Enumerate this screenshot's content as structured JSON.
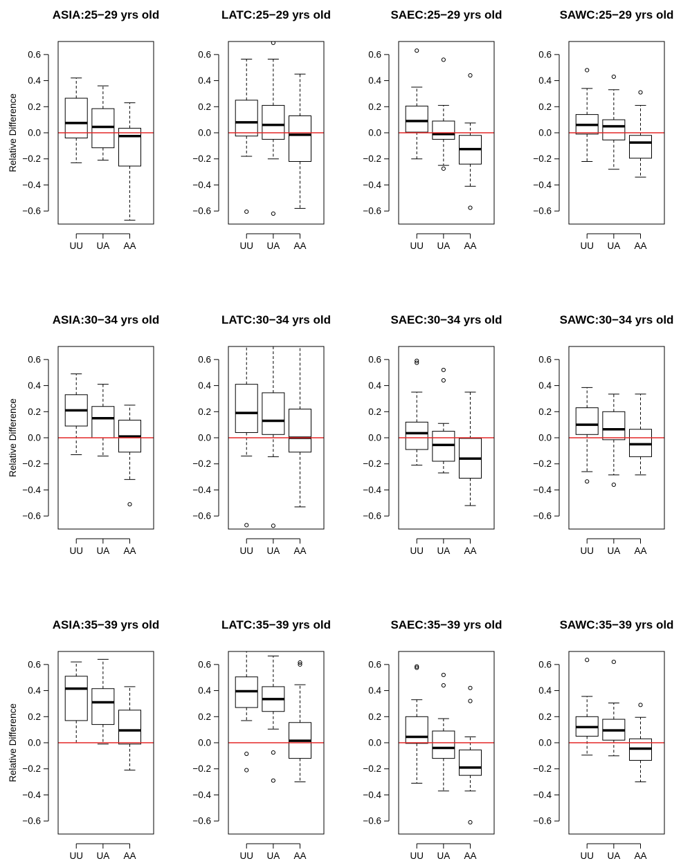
{
  "chart_data": [
    {
      "type": "box",
      "title": "ASIA:25−29 yrs old",
      "ylabel": "Relative Difference",
      "categories": [
        "UU",
        "UA",
        "AA"
      ],
      "ylim": [
        -0.7,
        0.7
      ],
      "yticks": [
        "−0.6",
        "−0.4",
        "−0.2",
        "0.0",
        "0.2",
        "0.4",
        "0.6"
      ],
      "reference_line": 0,
      "reference_color": "#e32626",
      "boxes": [
        {
          "whislo": -0.23,
          "q1": -0.04,
          "med": 0.075,
          "q3": 0.265,
          "whishi": 0.42,
          "outliers": []
        },
        {
          "whislo": -0.21,
          "q1": -0.115,
          "med": 0.045,
          "q3": 0.185,
          "whishi": 0.36,
          "outliers": []
        },
        {
          "whislo": -0.67,
          "q1": -0.255,
          "med": -0.025,
          "q3": 0.035,
          "whishi": 0.23,
          "outliers": []
        }
      ]
    },
    {
      "type": "box",
      "title": "LATC:25−29 yrs old",
      "ylabel": "",
      "categories": [
        "UU",
        "UA",
        "AA"
      ],
      "ylim": [
        -0.7,
        0.7
      ],
      "yticks": [
        "−0.6",
        "−0.4",
        "−0.2",
        "0.0",
        "0.2",
        "0.4",
        "0.6"
      ],
      "reference_line": 0,
      "reference_color": "#e32626",
      "boxes": [
        {
          "whislo": -0.18,
          "q1": -0.025,
          "med": 0.08,
          "q3": 0.25,
          "whishi": 0.565,
          "outliers": [
            -0.605
          ]
        },
        {
          "whislo": -0.2,
          "q1": -0.05,
          "med": 0.06,
          "q3": 0.21,
          "whishi": 0.565,
          "outliers": [
            0.69,
            -0.62
          ]
        },
        {
          "whislo": -0.58,
          "q1": -0.22,
          "med": -0.015,
          "q3": 0.13,
          "whishi": 0.45,
          "outliers": []
        }
      ]
    },
    {
      "type": "box",
      "title": "SAEC:25−29 yrs old",
      "ylabel": "",
      "categories": [
        "UU",
        "UA",
        "AA"
      ],
      "ylim": [
        -0.7,
        0.7
      ],
      "yticks": [
        "−0.6",
        "−0.4",
        "−0.2",
        "0.0",
        "0.2",
        "0.4",
        "0.6"
      ],
      "reference_line": 0,
      "reference_color": "#e32626",
      "boxes": [
        {
          "whislo": -0.2,
          "q1": 0.005,
          "med": 0.09,
          "q3": 0.205,
          "whishi": 0.35,
          "outliers": [
            0.63
          ]
        },
        {
          "whislo": -0.25,
          "q1": -0.05,
          "med": -0.01,
          "q3": 0.09,
          "whishi": 0.21,
          "outliers": [
            0.56,
            -0.275
          ]
        },
        {
          "whislo": -0.41,
          "q1": -0.24,
          "med": -0.125,
          "q3": -0.02,
          "whishi": 0.075,
          "outliers": [
            0.44,
            -0.575
          ]
        }
      ]
    },
    {
      "type": "box",
      "title": "SAWC:25−29 yrs old",
      "ylabel": "",
      "categories": [
        "UU",
        "UA",
        "AA"
      ],
      "ylim": [
        -0.7,
        0.7
      ],
      "yticks": [
        "−0.6",
        "−0.4",
        "−0.2",
        "0.0",
        "0.2",
        "0.4",
        "0.6"
      ],
      "reference_line": 0,
      "reference_color": "#e32626",
      "boxes": [
        {
          "whislo": -0.22,
          "q1": -0.01,
          "med": 0.06,
          "q3": 0.14,
          "whishi": 0.34,
          "outliers": [
            0.48
          ]
        },
        {
          "whislo": -0.28,
          "q1": -0.055,
          "med": 0.05,
          "q3": 0.1,
          "whishi": 0.33,
          "outliers": [
            0.43
          ]
        },
        {
          "whislo": -0.34,
          "q1": -0.195,
          "med": -0.075,
          "q3": -0.02,
          "whishi": 0.21,
          "outliers": [
            0.31
          ]
        }
      ]
    },
    {
      "type": "box",
      "title": "ASIA:30−34 yrs old",
      "ylabel": "Relative Difference",
      "categories": [
        "UU",
        "UA",
        "AA"
      ],
      "ylim": [
        -0.7,
        0.7
      ],
      "yticks": [
        "−0.6",
        "−0.4",
        "−0.2",
        "0.0",
        "0.2",
        "0.4",
        "0.6"
      ],
      "reference_line": 0,
      "reference_color": "#e32626",
      "boxes": [
        {
          "whislo": -0.13,
          "q1": 0.09,
          "med": 0.21,
          "q3": 0.33,
          "whishi": 0.49,
          "outliers": []
        },
        {
          "whislo": -0.14,
          "q1": 0.0,
          "med": 0.15,
          "q3": 0.24,
          "whishi": 0.41,
          "outliers": []
        },
        {
          "whislo": -0.32,
          "q1": -0.11,
          "med": 0.01,
          "q3": 0.135,
          "whishi": 0.25,
          "outliers": [
            -0.51
          ]
        }
      ]
    },
    {
      "type": "box",
      "title": "LATC:30−34 yrs old",
      "ylabel": "",
      "categories": [
        "UU",
        "UA",
        "AA"
      ],
      "ylim": [
        -0.7,
        0.7
      ],
      "yticks": [
        "−0.6",
        "−0.4",
        "−0.2",
        "0.0",
        "0.2",
        "0.4",
        "0.6"
      ],
      "reference_line": 0,
      "reference_color": "#e32626",
      "boxes": [
        {
          "whislo": -0.14,
          "q1": 0.04,
          "med": 0.19,
          "q3": 0.41,
          "whishi": 0.72,
          "outliers": [
            -0.67
          ]
        },
        {
          "whislo": -0.145,
          "q1": 0.025,
          "med": 0.13,
          "q3": 0.345,
          "whishi": 0.72,
          "outliers": [
            -0.675
          ]
        },
        {
          "whislo": -0.53,
          "q1": -0.11,
          "med": 0.0,
          "q3": 0.22,
          "whishi": 0.72,
          "outliers": []
        }
      ]
    },
    {
      "type": "box",
      "title": "SAEC:30−34 yrs old",
      "ylabel": "",
      "categories": [
        "UU",
        "UA",
        "AA"
      ],
      "ylim": [
        -0.7,
        0.7
      ],
      "yticks": [
        "−0.6",
        "−0.4",
        "−0.2",
        "0.0",
        "0.2",
        "0.4",
        "0.6"
      ],
      "reference_line": 0,
      "reference_color": "#e32626",
      "boxes": [
        {
          "whislo": -0.21,
          "q1": -0.09,
          "med": 0.035,
          "q3": 0.12,
          "whishi": 0.35,
          "outliers": [
            0.59,
            0.575
          ]
        },
        {
          "whislo": -0.27,
          "q1": -0.18,
          "med": -0.055,
          "q3": 0.05,
          "whishi": 0.11,
          "outliers": [
            0.52,
            0.44
          ]
        },
        {
          "whislo": -0.52,
          "q1": -0.31,
          "med": -0.16,
          "q3": -0.005,
          "whishi": 0.35,
          "outliers": []
        }
      ]
    },
    {
      "type": "box",
      "title": "SAWC:30−34 yrs old",
      "ylabel": "",
      "categories": [
        "UU",
        "UA",
        "AA"
      ],
      "ylim": [
        -0.7,
        0.7
      ],
      "yticks": [
        "−0.6",
        "−0.4",
        "−0.2",
        "0.0",
        "0.2",
        "0.4",
        "0.6"
      ],
      "reference_line": 0,
      "reference_color": "#e32626",
      "boxes": [
        {
          "whislo": -0.26,
          "q1": 0.025,
          "med": 0.1,
          "q3": 0.23,
          "whishi": 0.385,
          "outliers": [
            -0.335
          ]
        },
        {
          "whislo": -0.285,
          "q1": -0.015,
          "med": 0.065,
          "q3": 0.2,
          "whishi": 0.335,
          "outliers": [
            -0.36
          ]
        },
        {
          "whislo": -0.285,
          "q1": -0.145,
          "med": -0.05,
          "q3": 0.065,
          "whishi": 0.335,
          "outliers": []
        }
      ]
    },
    {
      "type": "box",
      "title": "ASIA:35−39 yrs old",
      "ylabel": "Relative Difference",
      "categories": [
        "UU",
        "UA",
        "AA"
      ],
      "ylim": [
        -0.7,
        0.7
      ],
      "yticks": [
        "−0.6",
        "−0.4",
        "−0.2",
        "0.0",
        "0.2",
        "0.4",
        "0.6"
      ],
      "reference_line": 0,
      "reference_color": "#e32626",
      "boxes": [
        {
          "whislo": 0.0,
          "q1": 0.17,
          "med": 0.415,
          "q3": 0.51,
          "whishi": 0.62,
          "outliers": []
        },
        {
          "whislo": -0.01,
          "q1": 0.14,
          "med": 0.31,
          "q3": 0.415,
          "whishi": 0.64,
          "outliers": []
        },
        {
          "whislo": -0.21,
          "q1": -0.01,
          "med": 0.095,
          "q3": 0.25,
          "whishi": 0.43,
          "outliers": []
        }
      ]
    },
    {
      "type": "box",
      "title": "LATC:35−39 yrs old",
      "ylabel": "",
      "categories": [
        "UU",
        "UA",
        "AA"
      ],
      "ylim": [
        -0.7,
        0.7
      ],
      "yticks": [
        "−0.6",
        "−0.4",
        "−0.2",
        "0.0",
        "0.2",
        "0.4",
        "0.6"
      ],
      "reference_line": 0,
      "reference_color": "#e32626",
      "boxes": [
        {
          "whislo": 0.17,
          "q1": 0.27,
          "med": 0.395,
          "q3": 0.505,
          "whishi": 0.72,
          "outliers": [
            -0.085,
            -0.21
          ]
        },
        {
          "whislo": 0.105,
          "q1": 0.24,
          "med": 0.335,
          "q3": 0.43,
          "whishi": 0.665,
          "outliers": [
            -0.075,
            -0.29
          ]
        },
        {
          "whislo": -0.3,
          "q1": -0.12,
          "med": 0.015,
          "q3": 0.155,
          "whishi": 0.445,
          "outliers": [
            0.615,
            0.6
          ]
        }
      ]
    },
    {
      "type": "box",
      "title": "SAEC:35−39 yrs old",
      "ylabel": "",
      "categories": [
        "UU",
        "UA",
        "AA"
      ],
      "ylim": [
        -0.7,
        0.7
      ],
      "yticks": [
        "−0.6",
        "−0.4",
        "−0.2",
        "0.0",
        "0.2",
        "0.4",
        "0.6"
      ],
      "reference_line": 0,
      "reference_color": "#e32626",
      "boxes": [
        {
          "whislo": -0.31,
          "q1": -0.005,
          "med": 0.045,
          "q3": 0.2,
          "whishi": 0.33,
          "outliers": [
            0.585,
            0.575
          ]
        },
        {
          "whislo": -0.37,
          "q1": -0.12,
          "med": -0.04,
          "q3": 0.09,
          "whishi": 0.185,
          "outliers": [
            0.52,
            0.44
          ]
        },
        {
          "whislo": -0.37,
          "q1": -0.25,
          "med": -0.19,
          "q3": -0.055,
          "whishi": 0.045,
          "outliers": [
            0.42,
            0.32,
            -0.61
          ]
        }
      ]
    },
    {
      "type": "box",
      "title": "SAWC:35−39 yrs old",
      "ylabel": "",
      "categories": [
        "UU",
        "UA",
        "AA"
      ],
      "ylim": [
        -0.7,
        0.7
      ],
      "yticks": [
        "−0.6",
        "−0.4",
        "−0.2",
        "0.0",
        "0.2",
        "0.4",
        "0.6"
      ],
      "reference_line": 0,
      "reference_color": "#e32626",
      "boxes": [
        {
          "whislo": -0.095,
          "q1": 0.05,
          "med": 0.12,
          "q3": 0.2,
          "whishi": 0.355,
          "outliers": [
            0.635
          ]
        },
        {
          "whislo": -0.1,
          "q1": 0.02,
          "med": 0.095,
          "q3": 0.18,
          "whishi": 0.305,
          "outliers": [
            0.62
          ]
        },
        {
          "whislo": -0.3,
          "q1": -0.135,
          "med": -0.045,
          "q3": 0.03,
          "whishi": 0.195,
          "outliers": [
            0.29
          ]
        }
      ]
    }
  ]
}
